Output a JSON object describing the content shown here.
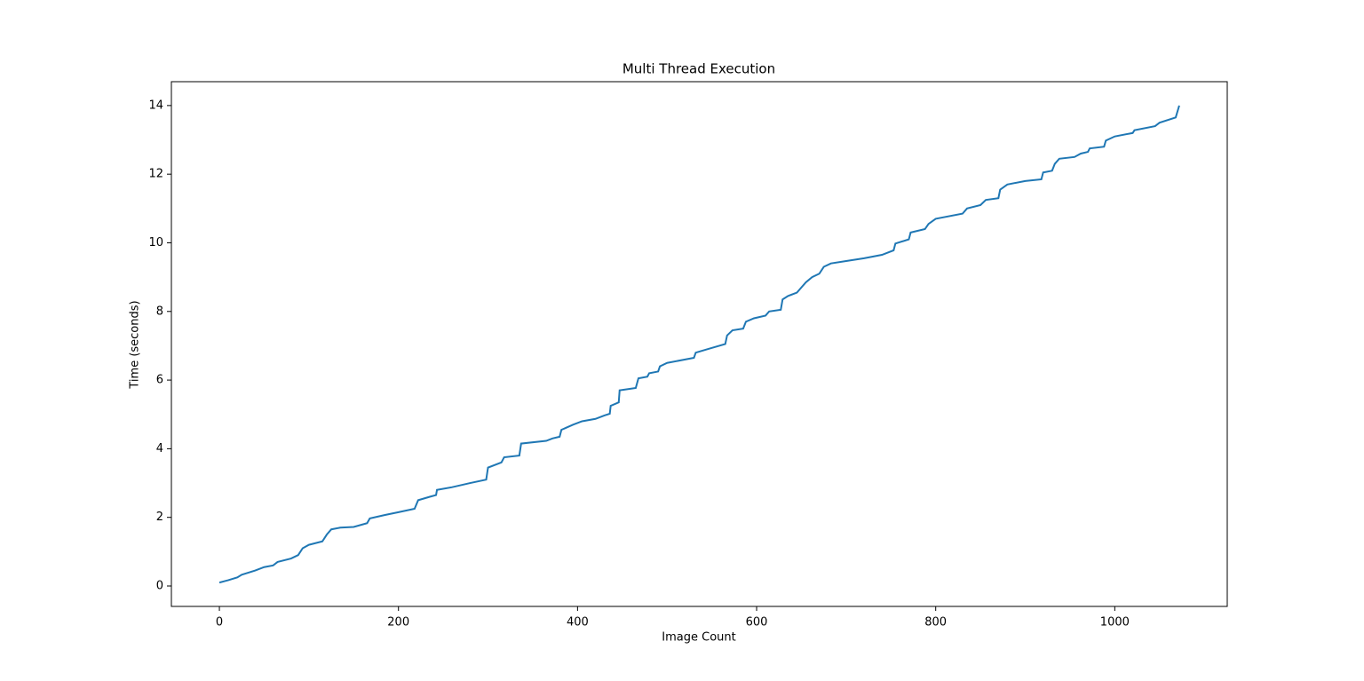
{
  "chart_data": {
    "type": "line",
    "title": "Multi Thread Execution",
    "xlabel": "Image Count",
    "ylabel": "Time (seconds)",
    "x": [
      0,
      10,
      20,
      25,
      40,
      50,
      60,
      65,
      80,
      88,
      93,
      100,
      115,
      120,
      125,
      135,
      150,
      165,
      168,
      185,
      200,
      218,
      222,
      235,
      242,
      243,
      260,
      280,
      298,
      300,
      315,
      318,
      335,
      337,
      365,
      372,
      380,
      382,
      395,
      405,
      420,
      430,
      436,
      437,
      446,
      447,
      465,
      468,
      478,
      480,
      490,
      492,
      500,
      530,
      532,
      545,
      565,
      567,
      573,
      585,
      588,
      597,
      610,
      614,
      627,
      629,
      635,
      645,
      650,
      655,
      662,
      670,
      675,
      683,
      700,
      720,
      740,
      753,
      755,
      770,
      772,
      788,
      792,
      800,
      830,
      835,
      850,
      856,
      870,
      872,
      880,
      900,
      918,
      920,
      930,
      933,
      938,
      955,
      962,
      970,
      972,
      988,
      990,
      1000,
      1020,
      1022,
      1045,
      1050,
      1068,
      1072
    ],
    "series": [
      {
        "name": "Multi Thread Execution",
        "color": "#1f77b4",
        "values": [
          0.1,
          0.17,
          0.25,
          0.33,
          0.45,
          0.55,
          0.6,
          0.7,
          0.8,
          0.9,
          1.1,
          1.2,
          1.3,
          1.5,
          1.65,
          1.7,
          1.72,
          1.83,
          1.97,
          2.07,
          2.15,
          2.25,
          2.5,
          2.6,
          2.65,
          2.8,
          2.88,
          3.0,
          3.1,
          3.45,
          3.6,
          3.75,
          3.8,
          4.15,
          4.23,
          4.3,
          4.35,
          4.55,
          4.7,
          4.8,
          4.87,
          4.97,
          5.02,
          5.25,
          5.35,
          5.7,
          5.77,
          6.05,
          6.1,
          6.2,
          6.25,
          6.4,
          6.5,
          6.65,
          6.8,
          6.9,
          7.05,
          7.3,
          7.45,
          7.5,
          7.7,
          7.8,
          7.88,
          8.0,
          8.05,
          8.35,
          8.45,
          8.55,
          8.7,
          8.85,
          9.0,
          9.1,
          9.3,
          9.4,
          9.47,
          9.55,
          9.65,
          9.78,
          9.98,
          10.1,
          10.3,
          10.4,
          10.55,
          10.7,
          10.85,
          11.0,
          11.1,
          11.25,
          11.3,
          11.55,
          11.7,
          11.8,
          11.85,
          12.05,
          12.1,
          12.3,
          12.45,
          12.5,
          12.6,
          12.65,
          12.75,
          12.8,
          12.98,
          13.1,
          13.2,
          13.28,
          13.4,
          13.5,
          13.65,
          14.0
        ]
      }
    ],
    "xlim": [
      -53.6,
      1125.6
    ],
    "ylim": [
      -0.595,
      14.695
    ],
    "xticks": [
      0,
      200,
      400,
      600,
      800,
      1000
    ],
    "yticks": [
      0,
      2,
      4,
      6,
      8,
      10,
      12,
      14
    ],
    "grid": false
  }
}
